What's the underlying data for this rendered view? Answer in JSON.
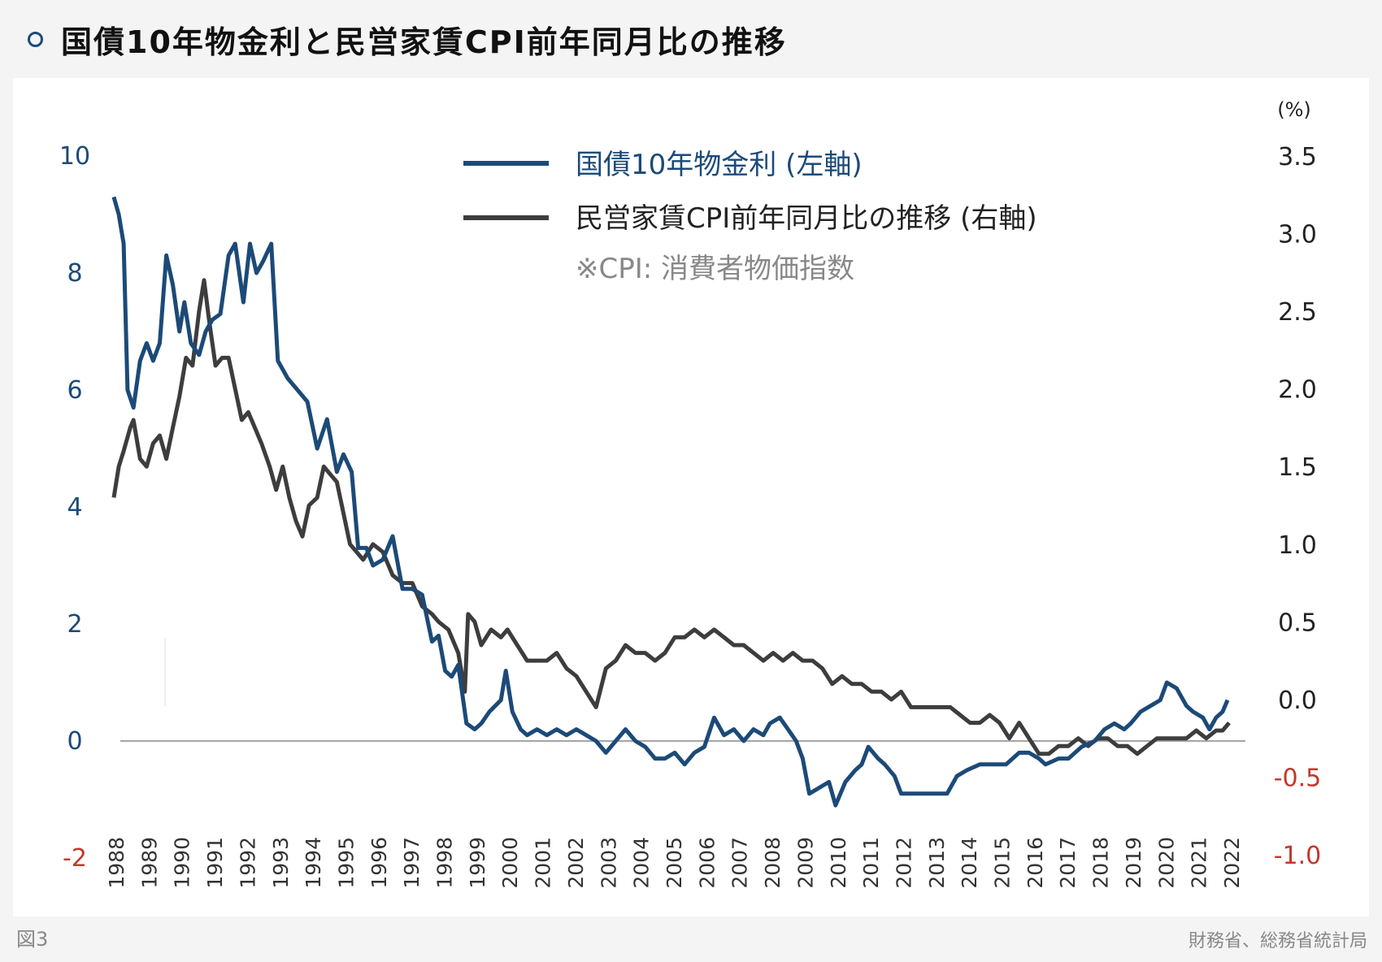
{
  "header": {
    "title": "国債10年物金利と民営家賃CPI前年同月比の推移"
  },
  "footer": {
    "figure_label": "図3",
    "source": "財務省、総務省統計局"
  },
  "colors": {
    "jgb": "#1c4a78",
    "cpi": "#3d3d3d",
    "negative": "#c0392b",
    "left_axis": "#1c4a78",
    "right_axis": "#222222"
  },
  "chart_data": {
    "type": "line",
    "title": "国債10年物金利と民営家賃CPI前年同月比の推移",
    "right_unit": "(%)",
    "note": "※CPI: 消費者物価指数",
    "left_axis": {
      "ylim": [
        -2,
        10
      ],
      "ticks": [
        "-2",
        "0",
        "2",
        "4",
        "6",
        "8",
        "10"
      ]
    },
    "right_axis": {
      "ylim": [
        -1.0,
        3.5
      ],
      "ticks": [
        "-1.0",
        "-0.5",
        "0.0",
        "0.5",
        "1.0",
        "1.5",
        "2.0",
        "2.5",
        "3.0",
        "3.5"
      ]
    },
    "x_tick_labels": [
      "1988",
      "1989",
      "1990",
      "1991",
      "1992",
      "1993",
      "1994",
      "1995",
      "1996",
      "1997",
      "1998",
      "1999",
      "2000",
      "2001",
      "2002",
      "2003",
      "2004",
      "2005",
      "2006",
      "2007",
      "2008",
      "2009",
      "2010",
      "2011",
      "2012",
      "2013",
      "2014",
      "2015",
      "2016",
      "2017",
      "2018",
      "2019",
      "2020",
      "2021",
      "2022"
    ],
    "legend": {
      "placement": "top-center"
    },
    "series": [
      {
        "name": "国債10年物金利 (左軸)",
        "axis": "left",
        "points": [
          [
            1988.0,
            9.3
          ],
          [
            1988.15,
            9.0
          ],
          [
            1988.3,
            8.5
          ],
          [
            1988.42,
            6.0
          ],
          [
            1988.6,
            5.7
          ],
          [
            1988.8,
            6.5
          ],
          [
            1989.0,
            6.8
          ],
          [
            1989.2,
            6.5
          ],
          [
            1989.4,
            6.8
          ],
          [
            1989.6,
            8.3
          ],
          [
            1989.8,
            7.8
          ],
          [
            1990.0,
            7.0
          ],
          [
            1990.15,
            7.5
          ],
          [
            1990.35,
            6.8
          ],
          [
            1990.6,
            6.6
          ],
          [
            1990.8,
            7.0
          ],
          [
            1991.0,
            7.2
          ],
          [
            1991.25,
            7.3
          ],
          [
            1991.5,
            8.3
          ],
          [
            1991.7,
            8.5
          ],
          [
            1991.95,
            7.5
          ],
          [
            1992.15,
            8.5
          ],
          [
            1992.35,
            8.0
          ],
          [
            1992.55,
            8.2
          ],
          [
            1992.8,
            8.5
          ],
          [
            1993.0,
            6.5
          ],
          [
            1993.3,
            6.2
          ],
          [
            1993.6,
            6.0
          ],
          [
            1993.9,
            5.8
          ],
          [
            1994.2,
            5.0
          ],
          [
            1994.5,
            5.5
          ],
          [
            1994.8,
            4.6
          ],
          [
            1995.0,
            4.9
          ],
          [
            1995.25,
            4.6
          ],
          [
            1995.45,
            3.3
          ],
          [
            1995.7,
            3.3
          ],
          [
            1995.9,
            3.0
          ],
          [
            1996.2,
            3.1
          ],
          [
            1996.5,
            3.5
          ],
          [
            1996.8,
            2.6
          ],
          [
            1997.1,
            2.6
          ],
          [
            1997.4,
            2.5
          ],
          [
            1997.7,
            1.7
          ],
          [
            1997.9,
            1.8
          ],
          [
            1998.1,
            1.2
          ],
          [
            1998.3,
            1.1
          ],
          [
            1998.5,
            1.3
          ],
          [
            1998.75,
            0.3
          ],
          [
            1999.0,
            0.2
          ],
          [
            1999.2,
            0.3
          ],
          [
            1999.45,
            0.5
          ],
          [
            1999.8,
            0.7
          ],
          [
            1999.95,
            1.2
          ],
          [
            2000.15,
            0.5
          ],
          [
            2000.4,
            0.2
          ],
          [
            2000.6,
            0.1
          ],
          [
            2000.9,
            0.2
          ],
          [
            2001.2,
            0.1
          ],
          [
            2001.5,
            0.2
          ],
          [
            2001.8,
            0.1
          ],
          [
            2002.1,
            0.2
          ],
          [
            2002.4,
            0.1
          ],
          [
            2002.7,
            0.0
          ],
          [
            2003.0,
            -0.2
          ],
          [
            2003.3,
            0.0
          ],
          [
            2003.6,
            0.2
          ],
          [
            2003.9,
            0.0
          ],
          [
            2004.2,
            -0.1
          ],
          [
            2004.5,
            -0.3
          ],
          [
            2004.8,
            -0.3
          ],
          [
            2005.1,
            -0.2
          ],
          [
            2005.4,
            -0.4
          ],
          [
            2005.7,
            -0.2
          ],
          [
            2006.0,
            -0.1
          ],
          [
            2006.3,
            0.4
          ],
          [
            2006.6,
            0.1
          ],
          [
            2006.9,
            0.2
          ],
          [
            2007.2,
            0.0
          ],
          [
            2007.5,
            0.2
          ],
          [
            2007.8,
            0.1
          ],
          [
            2008.0,
            0.3
          ],
          [
            2008.3,
            0.4
          ],
          [
            2008.55,
            0.2
          ],
          [
            2008.8,
            0.0
          ],
          [
            2009.0,
            -0.3
          ],
          [
            2009.2,
            -0.9
          ],
          [
            2009.5,
            -0.8
          ],
          [
            2009.8,
            -0.7
          ],
          [
            2010.0,
            -1.1
          ],
          [
            2010.3,
            -0.7
          ],
          [
            2010.6,
            -0.5
          ],
          [
            2010.8,
            -0.4
          ],
          [
            2011.0,
            -0.1
          ],
          [
            2011.3,
            -0.3
          ],
          [
            2011.5,
            -0.4
          ],
          [
            2011.8,
            -0.6
          ],
          [
            2012.0,
            -0.9
          ],
          [
            2012.5,
            -0.9
          ],
          [
            2013.0,
            -0.9
          ],
          [
            2013.4,
            -0.9
          ],
          [
            2013.7,
            -0.6
          ],
          [
            2014.0,
            -0.5
          ],
          [
            2014.4,
            -0.4
          ],
          [
            2014.8,
            -0.4
          ],
          [
            2015.2,
            -0.4
          ],
          [
            2015.6,
            -0.2
          ],
          [
            2015.9,
            -0.2
          ],
          [
            2016.2,
            -0.3
          ],
          [
            2016.4,
            -0.4
          ],
          [
            2016.8,
            -0.3
          ],
          [
            2017.1,
            -0.3
          ],
          [
            2017.5,
            -0.1
          ],
          [
            2017.9,
            0.0
          ],
          [
            2018.2,
            0.2
          ],
          [
            2018.5,
            0.3
          ],
          [
            2018.8,
            0.2
          ],
          [
            2019.0,
            0.3
          ],
          [
            2019.3,
            0.5
          ],
          [
            2019.6,
            0.6
          ],
          [
            2019.9,
            0.7
          ],
          [
            2020.1,
            1.0
          ],
          [
            2020.4,
            0.9
          ],
          [
            2020.7,
            0.6
          ],
          [
            2020.9,
            0.5
          ],
          [
            2021.2,
            0.4
          ],
          [
            2021.4,
            0.2
          ],
          [
            2021.6,
            0.4
          ],
          [
            2021.8,
            0.5
          ],
          [
            2021.95,
            0.7
          ]
        ]
      },
      {
        "name": "民営家賃CPI前年同月比の推移 (右軸)",
        "axis": "right",
        "points": [
          [
            1988.0,
            1.3
          ],
          [
            1988.15,
            1.5
          ],
          [
            1988.3,
            1.6
          ],
          [
            1988.5,
            1.75
          ],
          [
            1988.6,
            1.8
          ],
          [
            1988.8,
            1.55
          ],
          [
            1989.0,
            1.5
          ],
          [
            1989.2,
            1.65
          ],
          [
            1989.4,
            1.7
          ],
          [
            1989.6,
            1.55
          ],
          [
            1989.8,
            1.75
          ],
          [
            1990.0,
            1.95
          ],
          [
            1990.2,
            2.2
          ],
          [
            1990.4,
            2.15
          ],
          [
            1990.6,
            2.5
          ],
          [
            1990.75,
            2.7
          ],
          [
            1990.9,
            2.45
          ],
          [
            1991.1,
            2.15
          ],
          [
            1991.3,
            2.2
          ],
          [
            1991.5,
            2.2
          ],
          [
            1991.7,
            2.0
          ],
          [
            1991.9,
            1.8
          ],
          [
            1992.1,
            1.85
          ],
          [
            1992.3,
            1.75
          ],
          [
            1992.5,
            1.65
          ],
          [
            1992.75,
            1.5
          ],
          [
            1992.95,
            1.35
          ],
          [
            1993.15,
            1.5
          ],
          [
            1993.35,
            1.3
          ],
          [
            1993.55,
            1.15
          ],
          [
            1993.75,
            1.05
          ],
          [
            1993.95,
            1.25
          ],
          [
            1994.2,
            1.3
          ],
          [
            1994.4,
            1.5
          ],
          [
            1994.6,
            1.45
          ],
          [
            1994.8,
            1.4
          ],
          [
            1995.0,
            1.2
          ],
          [
            1995.2,
            1.0
          ],
          [
            1995.4,
            0.95
          ],
          [
            1995.6,
            0.9
          ],
          [
            1995.9,
            1.0
          ],
          [
            1996.2,
            0.95
          ],
          [
            1996.5,
            0.8
          ],
          [
            1996.8,
            0.75
          ],
          [
            1997.1,
            0.75
          ],
          [
            1997.4,
            0.6
          ],
          [
            1997.7,
            0.55
          ],
          [
            1997.9,
            0.5
          ],
          [
            1998.2,
            0.45
          ],
          [
            1998.5,
            0.3
          ],
          [
            1998.7,
            0.05
          ],
          [
            1998.8,
            0.55
          ],
          [
            1999.0,
            0.5
          ],
          [
            1999.2,
            0.35
          ],
          [
            1999.5,
            0.45
          ],
          [
            1999.8,
            0.4
          ],
          [
            2000.0,
            0.45
          ],
          [
            2000.3,
            0.35
          ],
          [
            2000.6,
            0.25
          ],
          [
            2000.9,
            0.25
          ],
          [
            2001.2,
            0.25
          ],
          [
            2001.5,
            0.3
          ],
          [
            2001.8,
            0.2
          ],
          [
            2002.1,
            0.15
          ],
          [
            2002.4,
            0.05
          ],
          [
            2002.7,
            -0.05
          ],
          [
            2003.0,
            0.2
          ],
          [
            2003.3,
            0.25
          ],
          [
            2003.6,
            0.35
          ],
          [
            2003.9,
            0.3
          ],
          [
            2004.2,
            0.3
          ],
          [
            2004.5,
            0.25
          ],
          [
            2004.8,
            0.3
          ],
          [
            2005.1,
            0.4
          ],
          [
            2005.4,
            0.4
          ],
          [
            2005.7,
            0.45
          ],
          [
            2006.0,
            0.4
          ],
          [
            2006.3,
            0.45
          ],
          [
            2006.6,
            0.4
          ],
          [
            2006.9,
            0.35
          ],
          [
            2007.2,
            0.35
          ],
          [
            2007.5,
            0.3
          ],
          [
            2007.8,
            0.25
          ],
          [
            2008.1,
            0.3
          ],
          [
            2008.4,
            0.25
          ],
          [
            2008.7,
            0.3
          ],
          [
            2009.0,
            0.25
          ],
          [
            2009.3,
            0.25
          ],
          [
            2009.6,
            0.2
          ],
          [
            2009.9,
            0.1
          ],
          [
            2010.2,
            0.15
          ],
          [
            2010.5,
            0.1
          ],
          [
            2010.8,
            0.1
          ],
          [
            2011.1,
            0.05
          ],
          [
            2011.4,
            0.05
          ],
          [
            2011.7,
            0.0
          ],
          [
            2012.0,
            0.05
          ],
          [
            2012.3,
            -0.05
          ],
          [
            2012.6,
            -0.05
          ],
          [
            2012.9,
            -0.05
          ],
          [
            2013.2,
            -0.05
          ],
          [
            2013.5,
            -0.05
          ],
          [
            2013.8,
            -0.1
          ],
          [
            2014.1,
            -0.15
          ],
          [
            2014.4,
            -0.15
          ],
          [
            2014.7,
            -0.1
          ],
          [
            2015.0,
            -0.15
          ],
          [
            2015.3,
            -0.25
          ],
          [
            2015.6,
            -0.15
          ],
          [
            2015.9,
            -0.25
          ],
          [
            2016.2,
            -0.35
          ],
          [
            2016.5,
            -0.35
          ],
          [
            2016.8,
            -0.3
          ],
          [
            2017.1,
            -0.3
          ],
          [
            2017.4,
            -0.25
          ],
          [
            2017.7,
            -0.3
          ],
          [
            2018.0,
            -0.25
          ],
          [
            2018.3,
            -0.25
          ],
          [
            2018.6,
            -0.3
          ],
          [
            2018.9,
            -0.3
          ],
          [
            2019.2,
            -0.35
          ],
          [
            2019.5,
            -0.3
          ],
          [
            2019.8,
            -0.25
          ],
          [
            2020.1,
            -0.25
          ],
          [
            2020.4,
            -0.25
          ],
          [
            2020.7,
            -0.25
          ],
          [
            2021.0,
            -0.2
          ],
          [
            2021.3,
            -0.25
          ],
          [
            2021.6,
            -0.2
          ],
          [
            2021.8,
            -0.2
          ],
          [
            2022.0,
            -0.15
          ]
        ]
      }
    ]
  }
}
